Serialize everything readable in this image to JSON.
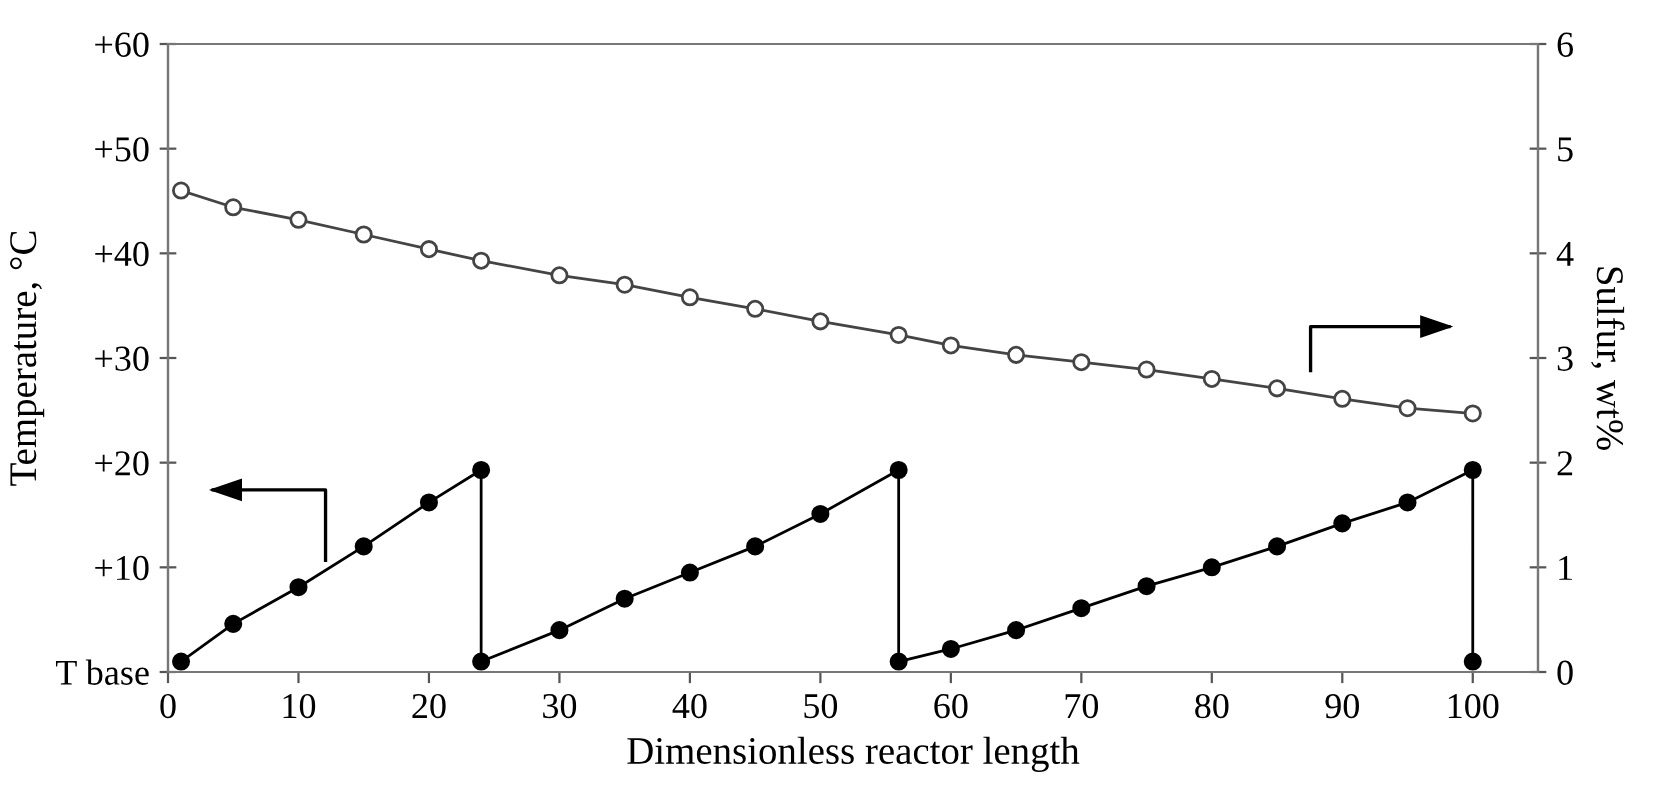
{
  "chart_data": {
    "type": "line",
    "xlabel": "Dimensionless reactor length",
    "ylabel": "Temperature, °C",
    "y2label": "Sulfur, wt%",
    "marker": "circle",
    "line_style": "solid",
    "grid": false,
    "legend": false,
    "xlim": [
      0,
      105
    ],
    "xticks": [
      0,
      10,
      20,
      30,
      40,
      50,
      60,
      70,
      80,
      90,
      100
    ],
    "ylim": [
      0,
      60
    ],
    "yticks": [
      {
        "value": 0,
        "label": "T base"
      },
      {
        "value": 10,
        "label": "+10"
      },
      {
        "value": 20,
        "label": "+20"
      },
      {
        "value": 30,
        "label": "+30"
      },
      {
        "value": 40,
        "label": "+40"
      },
      {
        "value": 50,
        "label": "+50"
      },
      {
        "value": 60,
        "label": "+60"
      }
    ],
    "y2lim": [
      0,
      6
    ],
    "y2ticks": [
      0,
      1,
      2,
      3,
      4,
      5,
      6
    ],
    "series": [
      {
        "color": "#000000",
        "x": [
          1,
          5,
          10,
          15,
          20,
          24,
          24,
          30,
          35,
          40,
          45,
          50,
          56,
          56,
          60,
          65,
          70,
          75,
          80,
          85,
          90,
          95,
          100,
          100
        ],
        "values": [
          1,
          4.6,
          8.1,
          12,
          16.2,
          19.3,
          1,
          4,
          7,
          9.5,
          12,
          15.1,
          19.3,
          1,
          2.2,
          4,
          6.1,
          8.2,
          10,
          12,
          14.2,
          16.2,
          19.3,
          1
        ]
      },
      {
        "color": "#444444",
        "axis": "y2",
        "x": [
          1,
          5,
          10,
          15,
          20,
          24,
          30,
          35,
          40,
          45,
          50,
          56,
          60,
          65,
          70,
          75,
          80,
          85,
          90,
          95,
          100
        ],
        "values": [
          4.6,
          4.44,
          4.32,
          4.18,
          4.04,
          3.93,
          3.79,
          3.7,
          3.58,
          3.47,
          3.35,
          3.22,
          3.12,
          3.03,
          2.96,
          2.89,
          2.8,
          2.71,
          2.61,
          2.52,
          2.47
        ]
      }
    ]
  }
}
